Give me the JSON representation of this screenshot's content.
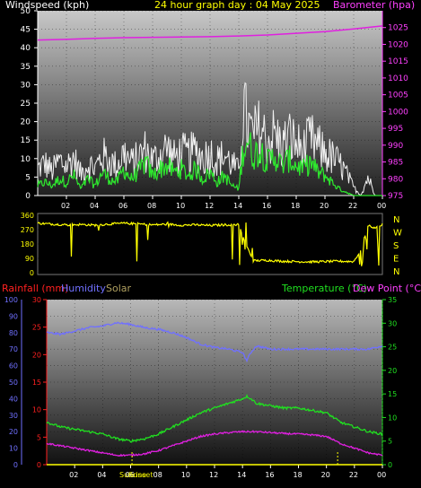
{
  "header": {
    "top_left": "Windspeed (kph)",
    "top_center": "24 hour graph day : 04 May 2025",
    "top_right": "Barometer (hpa)"
  },
  "colors": {
    "wind": "#f0f0f0",
    "gust_avg": "#2ee82e",
    "barometer": "#e020e0",
    "direction": "#ffff00",
    "rainfall": "#ff2020",
    "humidity": "#7070ff",
    "solar": "#b0a060",
    "temperature": "#20e020",
    "dewpoint": "#e020e0"
  },
  "chart_data": [
    {
      "type": "line",
      "name": "wind-barometer",
      "x_ticks": [
        "02",
        "04",
        "06",
        "08",
        "10",
        "12",
        "14",
        "16",
        "18",
        "20",
        "22",
        "00"
      ],
      "y_left_label": "Windspeed (kph)",
      "y_left_ticks": [
        "0",
        "5",
        "10",
        "15",
        "20",
        "25",
        "30",
        "35",
        "40",
        "45",
        "50"
      ],
      "ylim_left": [
        0,
        50
      ],
      "y_right_label": "Barometer (hpa)",
      "y_right_ticks": [
        "975",
        "980",
        "985",
        "990",
        "995",
        "1000",
        "1005",
        "1010",
        "1015",
        "1020",
        "1025"
      ],
      "ylim_right": [
        975,
        1030
      ],
      "x_range_hours": [
        0,
        24
      ],
      "series": [
        {
          "key": "gust",
          "x": [
            0,
            0.5,
            1,
            1.5,
            2,
            2.5,
            3,
            3.5,
            4,
            4.5,
            5,
            5.5,
            6,
            6.5,
            7,
            7.5,
            8,
            8.5,
            9,
            9.5,
            10,
            10.5,
            11,
            11.5,
            12,
            12.5,
            13,
            13.5,
            14,
            14.3,
            14.6,
            15,
            15.5,
            16,
            16.5,
            17,
            17.5,
            18,
            18.5,
            19,
            19.5,
            20,
            20.5,
            21,
            21.5,
            22,
            22.5,
            23,
            23.5,
            24
          ],
          "values": [
            10,
            12,
            9,
            13,
            11,
            14,
            8,
            12,
            10,
            15,
            13,
            11,
            16,
            12,
            14,
            17,
            13,
            15,
            18,
            14,
            16,
            15,
            17,
            14,
            16,
            13,
            15,
            12,
            9,
            33,
            26,
            22,
            25,
            20,
            23,
            18,
            22,
            19,
            17,
            21,
            18,
            16,
            14,
            12,
            8,
            3,
            0,
            7,
            0,
            0
          ]
        },
        {
          "key": "average",
          "x": [
            0,
            0.5,
            1,
            1.5,
            2,
            2.5,
            3,
            3.5,
            4,
            4.5,
            5,
            5.5,
            6,
            6.5,
            7,
            7.5,
            8,
            8.5,
            9,
            9.5,
            10,
            10.5,
            11,
            11.5,
            12,
            12.5,
            13,
            13.5,
            14,
            14.3,
            14.6,
            15,
            15.5,
            16,
            16.5,
            17,
            17.5,
            18,
            18.5,
            19,
            19.5,
            20,
            20.5,
            21,
            21.5,
            22,
            22.5,
            23,
            23.5,
            24
          ],
          "values": [
            3,
            4,
            3,
            5,
            4,
            6,
            2,
            5,
            3,
            7,
            5,
            4,
            8,
            5,
            7,
            10,
            6,
            8,
            9,
            7,
            8,
            6,
            8,
            5,
            7,
            4,
            6,
            3,
            2,
            14,
            17,
            12,
            14,
            10,
            12,
            9,
            11,
            9,
            8,
            10,
            7,
            6,
            4,
            2,
            1,
            0,
            0,
            0,
            0,
            0
          ]
        },
        {
          "name": "Barometer (hpa)",
          "key": "barometer",
          "x": [
            0,
            2,
            4,
            6,
            8,
            10,
            12,
            14,
            16,
            18,
            20,
            22,
            24
          ],
          "values": [
            1021.3,
            1021.5,
            1021.8,
            1022.0,
            1022.1,
            1022.2,
            1022.3,
            1022.5,
            1022.8,
            1023.3,
            1023.8,
            1024.6,
            1025.5
          ]
        }
      ]
    },
    {
      "type": "line",
      "name": "wind-direction",
      "y_left_ticks": [
        "360",
        "270",
        "180",
        "90",
        "0"
      ],
      "ylim": [
        0,
        360
      ],
      "y_right_ticks": [
        "N",
        "W",
        "S",
        "E",
        "N"
      ],
      "x_range_hours": [
        0,
        24
      ],
      "series": [
        {
          "key": "direction",
          "x": [
            0,
            1,
            2,
            3,
            4,
            5,
            6,
            7,
            8,
            9,
            10,
            11,
            12,
            13,
            14,
            14.5,
            15,
            16,
            17,
            18,
            19,
            20,
            21,
            22,
            22.5,
            23,
            23.5,
            24
          ],
          "values": [
            310,
            305,
            300,
            302,
            298,
            305,
            310,
            306,
            300,
            304,
            298,
            300,
            296,
            300,
            302,
            180,
            75,
            78,
            72,
            70,
            68,
            70,
            72,
            70,
            140,
            300,
            280,
            295
          ]
        }
      ]
    },
    {
      "type": "line",
      "name": "temp-humidity",
      "x_ticks": [
        "02",
        "04",
        "06",
        "08",
        "10",
        "12",
        "14",
        "16",
        "18",
        "20",
        "22",
        "00"
      ],
      "x_markers": [
        "Sunrise",
        "Sunset"
      ],
      "legend_left": [
        "Rainfall (mm)",
        "Humidity",
        "Solar"
      ],
      "legend_right": [
        "Temperature (°C)",
        "Dew Point (°C)"
      ],
      "y_left_humidity_ticks": [
        "0",
        "10",
        "20",
        "30",
        "40",
        "50",
        "60",
        "70",
        "80",
        "90",
        "100"
      ],
      "ylim_humidity": [
        0,
        100
      ],
      "y_left_rain_ticks": [
        "0",
        "5",
        "10",
        "15",
        "20",
        "25",
        "30"
      ],
      "ylim_rain": [
        0,
        30
      ],
      "y_right_ticks": [
        "0",
        "5",
        "10",
        "15",
        "20",
        "25",
        "30",
        "35"
      ],
      "ylim_temp": [
        0,
        35
      ],
      "x_range_hours": [
        0,
        24
      ],
      "series": [
        {
          "name": "Humidity",
          "key": "humidity",
          "x": [
            0,
            1,
            2,
            3,
            4,
            5,
            6,
            7,
            8,
            9,
            10,
            11,
            12,
            13,
            14,
            14.3,
            14.6,
            15,
            16,
            17,
            18,
            19,
            20,
            21,
            22,
            23,
            24
          ],
          "values": [
            80,
            79,
            81,
            83,
            84,
            86,
            85,
            83,
            82,
            80,
            77,
            73,
            71,
            70,
            68,
            63,
            68,
            72,
            70,
            70,
            70,
            70,
            70,
            70,
            70,
            70,
            72
          ]
        },
        {
          "name": "Temperature (°C)",
          "key": "temperature",
          "x": [
            0,
            1,
            2,
            3,
            4,
            5,
            6,
            7,
            8,
            9,
            10,
            11,
            12,
            13,
            14,
            14.3,
            14.6,
            15,
            16,
            17,
            18,
            19,
            20,
            21,
            22,
            23,
            24
          ],
          "values": [
            9,
            8,
            7.5,
            7,
            6.5,
            5.5,
            5,
            5.5,
            6.5,
            8,
            9.5,
            11,
            12,
            13,
            14,
            14.5,
            14,
            13,
            12.5,
            12,
            12,
            11.5,
            11,
            9,
            8,
            7,
            6.5
          ]
        },
        {
          "name": "Dew Point (°C)",
          "key": "dewpoint",
          "x": [
            0,
            1,
            2,
            3,
            4,
            5,
            6,
            7,
            8,
            9,
            10,
            11,
            12,
            13,
            14,
            15,
            16,
            17,
            18,
            19,
            20,
            21,
            22,
            23,
            24
          ],
          "values": [
            4.5,
            4,
            3.5,
            3,
            2.5,
            2,
            2,
            2.3,
            3,
            4,
            5,
            6,
            6.5,
            6.8,
            7,
            7,
            6.8,
            6.6,
            6.5,
            6.3,
            6,
            4.5,
            3.5,
            2.5,
            2
          ]
        },
        {
          "name": "Rainfall (mm)",
          "key": "rain",
          "x": [
            0,
            24
          ],
          "values": [
            0,
            0
          ]
        }
      ],
      "markers": [
        {
          "label": "Sunrise",
          "hour": 6.1
        },
        {
          "label": "Sunset",
          "hour": 20.8
        }
      ]
    }
  ]
}
